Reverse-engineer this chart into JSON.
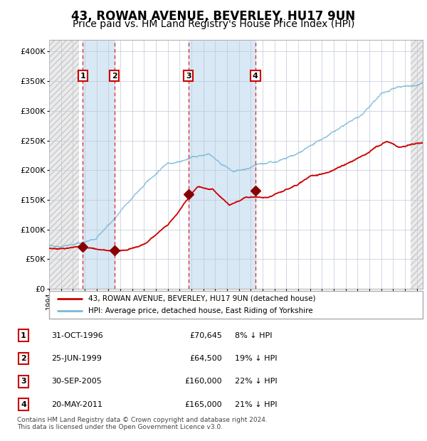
{
  "title": "43, ROWAN AVENUE, BEVERLEY, HU17 9UN",
  "subtitle": "Price paid vs. HM Land Registry's House Price Index (HPI)",
  "ylim": [
    0,
    420000
  ],
  "yticks": [
    0,
    50000,
    100000,
    150000,
    200000,
    250000,
    300000,
    350000,
    400000
  ],
  "ytick_labels": [
    "£0",
    "£50K",
    "£100K",
    "£150K",
    "£200K",
    "£250K",
    "£300K",
    "£350K",
    "£400K"
  ],
  "xlim_start": 1994.0,
  "xlim_end": 2025.5,
  "hpi_color": "#7ab8d9",
  "price_color": "#cc0000",
  "marker_color": "#880000",
  "sale_dates": [
    1996.833,
    1999.5,
    2005.75,
    2011.389
  ],
  "sale_prices": [
    70645,
    64500,
    160000,
    165000
  ],
  "sale_labels": [
    "1",
    "2",
    "3",
    "4"
  ],
  "legend_price_label": "43, ROWAN AVENUE, BEVERLEY, HU17 9UN (detached house)",
  "legend_hpi_label": "HPI: Average price, detached house, East Riding of Yorkshire",
  "table_data": [
    [
      "1",
      "31-OCT-1996",
      "£70,645",
      "8% ↓ HPI"
    ],
    [
      "2",
      "25-JUN-1999",
      "£64,500",
      "19% ↓ HPI"
    ],
    [
      "3",
      "30-SEP-2005",
      "£160,000",
      "22% ↓ HPI"
    ],
    [
      "4",
      "20-MAY-2011",
      "£165,000",
      "21% ↓ HPI"
    ]
  ],
  "footer": "Contains HM Land Registry data © Crown copyright and database right 2024.\nThis data is licensed under the Open Government Licence v3.0.",
  "shade_color": "#d8e8f5",
  "title_fontsize": 12,
  "subtitle_fontsize": 10
}
